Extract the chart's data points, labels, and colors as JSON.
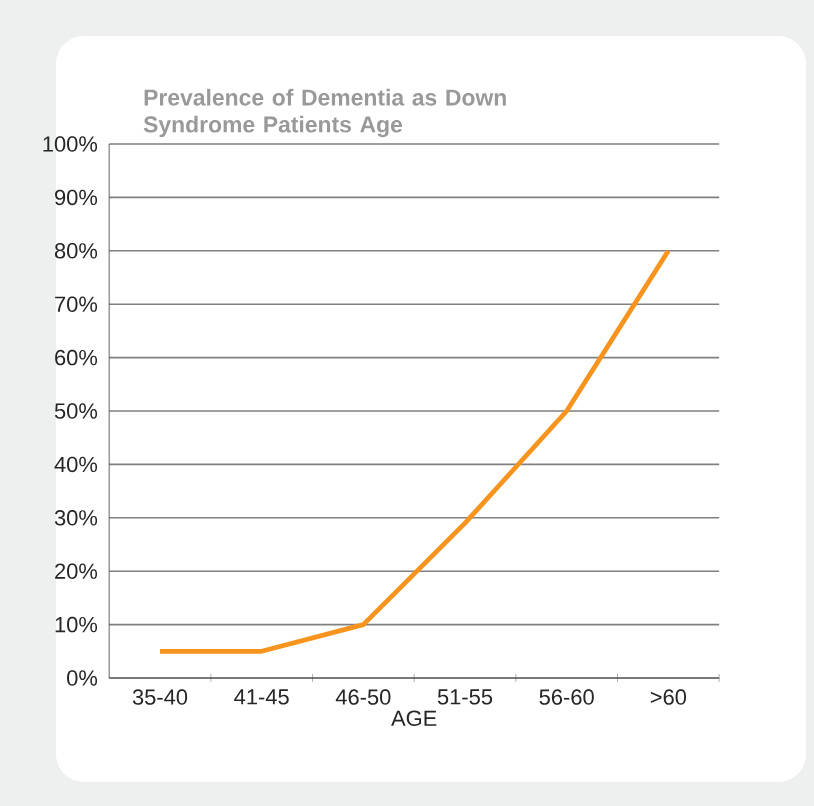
{
  "chart_data": {
    "type": "line",
    "title": "Prevalence of Dementia as Down Syndrome Patients Age",
    "xlabel": "AGE",
    "categories": [
      "35-40",
      "41-45",
      "46-50",
      "51-55",
      "56-60",
      ">60"
    ],
    "series": [
      {
        "color": "#f7941d",
        "values": [
          5,
          5,
          10,
          29,
          50,
          80
        ]
      }
    ],
    "ylim": [
      0,
      100
    ],
    "yticks": [
      {
        "value": 0,
        "label": "0%"
      },
      {
        "value": 10,
        "label": "10%"
      },
      {
        "value": 20,
        "label": "20%"
      },
      {
        "value": 30,
        "label": "30%"
      },
      {
        "value": 40,
        "label": "40%"
      },
      {
        "value": 50,
        "label": "50%"
      },
      {
        "value": 60,
        "label": "60%"
      },
      {
        "value": 70,
        "label": "70%"
      },
      {
        "value": 80,
        "label": "80%"
      },
      {
        "value": 90,
        "label": "90%"
      },
      {
        "value": 100,
        "label": "100%"
      }
    ],
    "grid": "y",
    "marker": "none",
    "line_style": "solid"
  }
}
